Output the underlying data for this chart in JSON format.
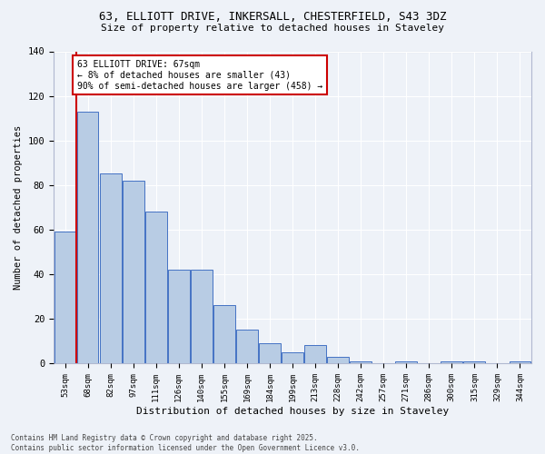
{
  "title_line1": "63, ELLIOTT DRIVE, INKERSALL, CHESTERFIELD, S43 3DZ",
  "title_line2": "Size of property relative to detached houses in Staveley",
  "xlabel": "Distribution of detached houses by size in Staveley",
  "ylabel": "Number of detached properties",
  "categories": [
    "53sqm",
    "68sqm",
    "82sqm",
    "97sqm",
    "111sqm",
    "126sqm",
    "140sqm",
    "155sqm",
    "169sqm",
    "184sqm",
    "199sqm",
    "213sqm",
    "228sqm",
    "242sqm",
    "257sqm",
    "271sqm",
    "286sqm",
    "300sqm",
    "315sqm",
    "329sqm",
    "344sqm"
  ],
  "values": [
    59,
    113,
    85,
    82,
    68,
    42,
    42,
    26,
    15,
    9,
    5,
    8,
    3,
    1,
    0,
    1,
    0,
    1,
    1,
    0,
    1
  ],
  "bar_color": "#b8cce4",
  "bar_edge_color": "#4472c4",
  "background_color": "#eef2f8",
  "grid_color": "#ffffff",
  "vline_color": "#cc0000",
  "annotation_text": "63 ELLIOTT DRIVE: 67sqm\n← 8% of detached houses are smaller (43)\n90% of semi-detached houses are larger (458) →",
  "annotation_box_color": "#cc0000",
  "ylim": [
    0,
    140
  ],
  "yticks": [
    0,
    20,
    40,
    60,
    80,
    100,
    120,
    140
  ],
  "footer_line1": "Contains HM Land Registry data © Crown copyright and database right 2025.",
  "footer_line2": "Contains public sector information licensed under the Open Government Licence v3.0."
}
